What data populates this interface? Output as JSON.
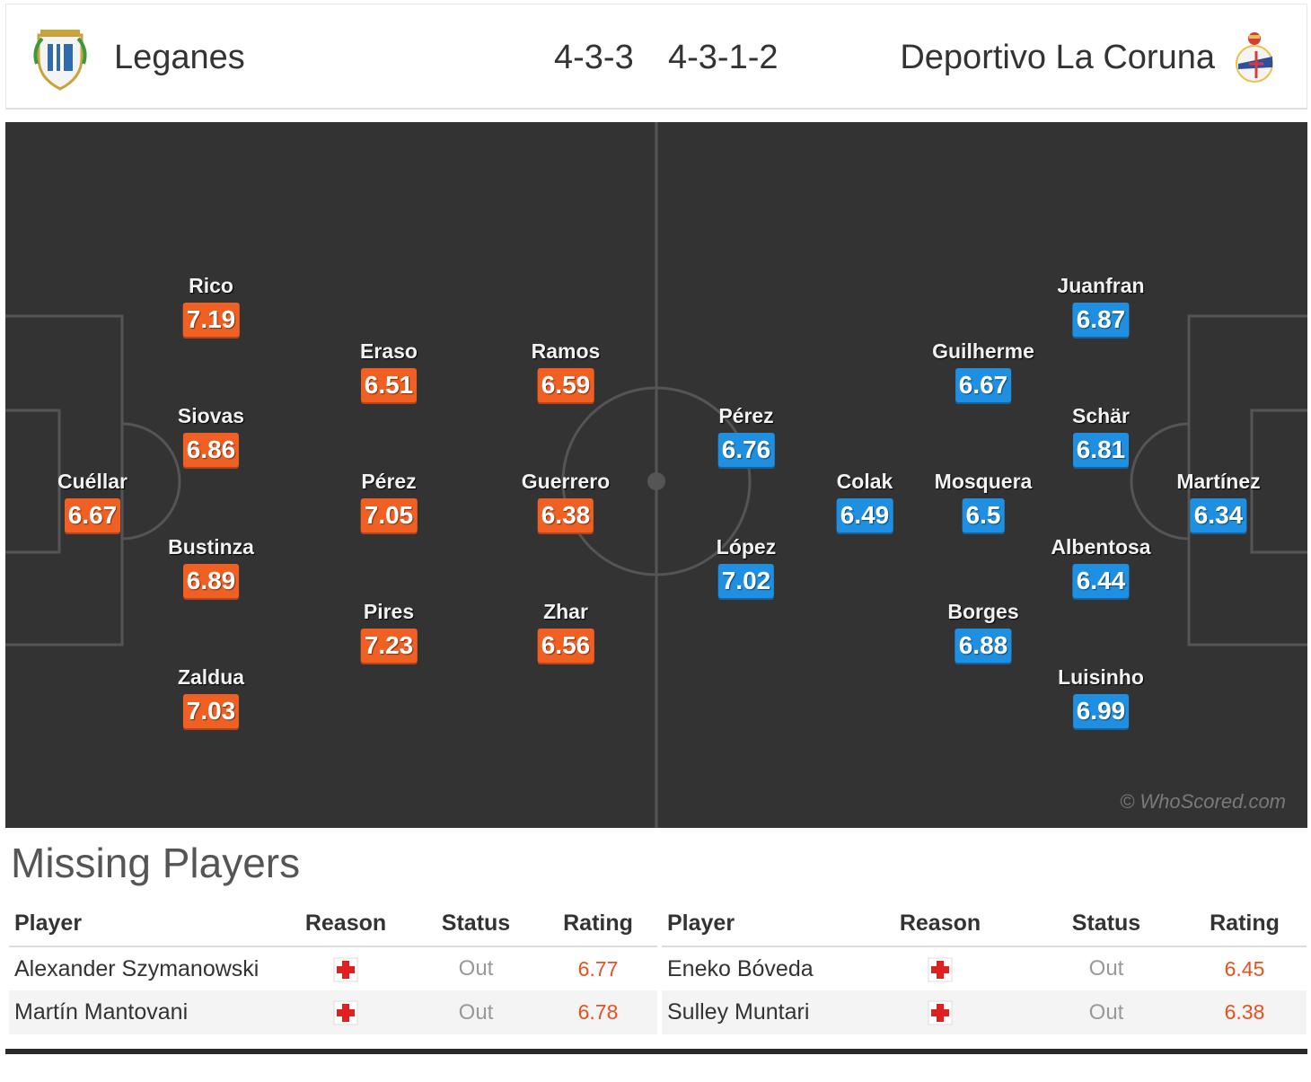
{
  "header": {
    "home_team": "Leganes",
    "home_formation": "4-3-3",
    "away_formation": "4-3-1-2",
    "away_team": "Deportivo La Coruna"
  },
  "pitch": {
    "watermark": "© WhoScored.com",
    "colors": {
      "pitch": "#333333",
      "home_rating": "#f06022",
      "away_rating": "#1e8fe1"
    },
    "home_players": [
      {
        "name": "Cuéllar",
        "rating": "6.67"
      },
      {
        "name": "Rico",
        "rating": "7.19"
      },
      {
        "name": "Siovas",
        "rating": "6.86"
      },
      {
        "name": "Bustinza",
        "rating": "6.89"
      },
      {
        "name": "Zaldua",
        "rating": "7.03"
      },
      {
        "name": "Eraso",
        "rating": "6.51"
      },
      {
        "name": "Pérez",
        "rating": "7.05"
      },
      {
        "name": "Pires",
        "rating": "7.23"
      },
      {
        "name": "Ramos",
        "rating": "6.59"
      },
      {
        "name": "Guerrero",
        "rating": "6.38"
      },
      {
        "name": "Zhar",
        "rating": "6.56"
      }
    ],
    "away_players": [
      {
        "name": "Martínez",
        "rating": "6.34"
      },
      {
        "name": "Juanfran",
        "rating": "6.87"
      },
      {
        "name": "Schär",
        "rating": "6.81"
      },
      {
        "name": "Albentosa",
        "rating": "6.44"
      },
      {
        "name": "Luisinho",
        "rating": "6.99"
      },
      {
        "name": "Guilherme",
        "rating": "6.67"
      },
      {
        "name": "Mosquera",
        "rating": "6.5"
      },
      {
        "name": "Borges",
        "rating": "6.88"
      },
      {
        "name": "Colak",
        "rating": "6.49"
      },
      {
        "name": "Pérez",
        "rating": "6.76"
      },
      {
        "name": "López",
        "rating": "7.02"
      }
    ]
  },
  "missing": {
    "title": "Missing Players",
    "columns": {
      "player": "Player",
      "reason": "Reason",
      "status": "Status",
      "rating": "Rating"
    },
    "home": [
      {
        "player": "Alexander Szymanowski",
        "reason_icon": "injury-icon",
        "status": "Out",
        "rating": "6.77"
      },
      {
        "player": "Martín Mantovani",
        "reason_icon": "injury-icon",
        "status": "Out",
        "rating": "6.78"
      }
    ],
    "away": [
      {
        "player": "Eneko Bóveda",
        "reason_icon": "injury-icon",
        "status": "Out",
        "rating": "6.45"
      },
      {
        "player": "Sulley Muntari",
        "reason_icon": "injury-icon",
        "status": "Out",
        "rating": "6.38"
      }
    ]
  }
}
